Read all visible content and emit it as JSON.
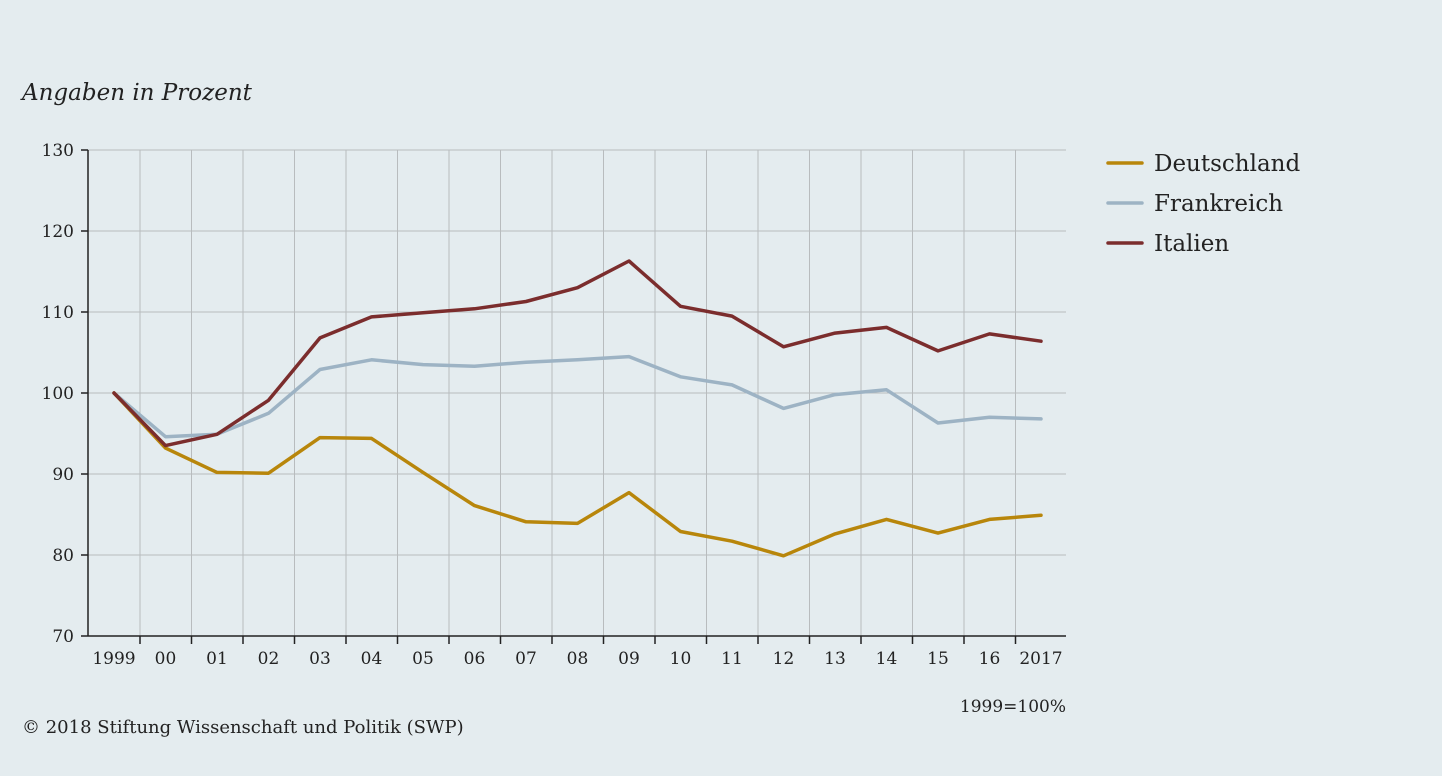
{
  "subtitle": "Angaben in Prozent",
  "base_note": "1999=100%",
  "copyright": "© 2018 Stiftung Wissenschaft und Politik (SWP)",
  "chart_data": {
    "type": "line",
    "title": "",
    "xlabel": "",
    "ylabel": "Angaben in Prozent",
    "x": [
      1999,
      2000,
      2001,
      2002,
      2003,
      2004,
      2005,
      2006,
      2007,
      2008,
      2009,
      2010,
      2011,
      2012,
      2013,
      2014,
      2015,
      2016,
      2017
    ],
    "x_tick_labels": [
      "1999",
      "00",
      "01",
      "02",
      "03",
      "04",
      "05",
      "06",
      "07",
      "08",
      "09",
      "10",
      "11",
      "12",
      "13",
      "14",
      "15",
      "16",
      "2017"
    ],
    "ylim": [
      70,
      130
    ],
    "yticks": [
      70,
      80,
      90,
      100,
      110,
      120,
      130
    ],
    "grid": true,
    "legend_position": "right",
    "series": [
      {
        "name": "Deutschland",
        "color": "#b8860b",
        "values": [
          100,
          93.2,
          90.2,
          90.1,
          94.5,
          94.4,
          90.2,
          86.1,
          84.1,
          83.9,
          87.7,
          82.9,
          81.7,
          79.9,
          82.6,
          84.4,
          82.7,
          84.4,
          84.9
        ]
      },
      {
        "name": "Frankreich",
        "color": "#9db3c4",
        "values": [
          100,
          94.6,
          94.9,
          97.5,
          102.9,
          104.1,
          103.5,
          103.3,
          103.8,
          104.1,
          104.5,
          102.0,
          101.0,
          98.1,
          99.8,
          100.4,
          96.3,
          97.0,
          96.8
        ]
      },
      {
        "name": "Italien",
        "color": "#7b2d2d",
        "values": [
          100,
          93.5,
          94.9,
          99.1,
          106.8,
          109.4,
          109.9,
          110.4,
          111.3,
          113.0,
          116.3,
          110.7,
          109.5,
          105.7,
          107.4,
          108.1,
          105.2,
          107.3,
          106.4
        ]
      }
    ]
  }
}
